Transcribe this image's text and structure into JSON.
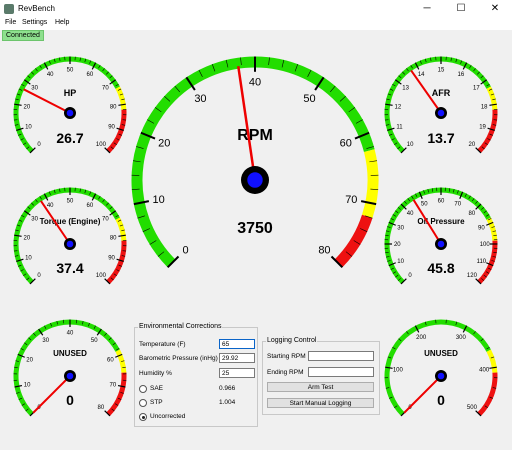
{
  "window": {
    "title": "RevBench",
    "minimize": "─",
    "maximize": "☐",
    "close": "✕",
    "app_icon": "revbench-app-icon"
  },
  "menu": {
    "items": [
      "File",
      "Settings",
      "Help"
    ]
  },
  "status": {
    "label": "Connected",
    "color": "#8ee08e"
  },
  "gauges": [
    {
      "id": "hp",
      "label": "HP",
      "value_text": "26.7",
      "ticks": [
        "0",
        "10",
        "20",
        "30",
        "40",
        "50",
        "60",
        "70",
        "80",
        "90",
        "100"
      ],
      "needle_fraction": 0.267
    },
    {
      "id": "rpm",
      "label": "RPM",
      "value_text": "3750",
      "ticks": [
        "0",
        "10",
        "20",
        "30",
        "40",
        "50",
        "60",
        "70",
        "80"
      ],
      "needle_fraction": 0.469
    },
    {
      "id": "afr",
      "label": "AFR",
      "value_text": "13.7",
      "ticks": [
        "10",
        "11",
        "12",
        "13",
        "14",
        "15",
        "16",
        "17",
        "18",
        "19",
        "20"
      ],
      "needle_fraction": 0.37
    },
    {
      "id": "torque",
      "label": "Torque (Engine)",
      "value_text": "37.4",
      "ticks": [
        "0",
        "10",
        "20",
        "30",
        "40",
        "50",
        "60",
        "70",
        "80",
        "90",
        "100"
      ],
      "needle_fraction": 0.374
    },
    {
      "id": "oil",
      "label": "Oil Pressure",
      "value_text": "45.8",
      "ticks": [
        "0",
        "10",
        "20",
        "30",
        "40",
        "50",
        "60",
        "70",
        "80",
        "90",
        "100",
        "110",
        "120"
      ],
      "needle_fraction": 0.382
    },
    {
      "id": "unused1",
      "label": "UNUSED",
      "value_text": "0",
      "ticks": [
        "0",
        "10",
        "20",
        "30",
        "40",
        "50",
        "60",
        "70",
        "80"
      ],
      "needle_fraction": 0.0
    },
    {
      "id": "unused2",
      "label": "UNUSED",
      "value_text": "0",
      "ticks": [
        "0",
        "100",
        "200",
        "300",
        "400",
        "500"
      ],
      "needle_fraction": 0.0
    }
  ],
  "env": {
    "title": "Environmental Corrections",
    "temperature_label": "Temperature (F)",
    "temperature_value": "65",
    "pressure_label": "Barometric Pressure (inHg)",
    "pressure_value": "29.92",
    "humidity_label": "Humidity %",
    "humidity_value": "25",
    "sae_label": "SAE",
    "sae_value": "0.966",
    "stp_label": "STP",
    "stp_value": "1.004",
    "uncorrected_label": "Uncorrected",
    "selected": "Uncorrected"
  },
  "logging": {
    "title": "Logging Control",
    "start_rpm_label": "Starting RPM",
    "start_rpm_value": "",
    "end_rpm_label": "Ending RPM",
    "end_rpm_value": "",
    "arm_button": "Arm Test",
    "manual_button": "Start Manual Logging"
  },
  "colors": {
    "green": "#22dd00",
    "yellow": "#ffff00",
    "red": "#ee1111",
    "needle": "#ee0000",
    "hub_blue": "#1010ff"
  }
}
